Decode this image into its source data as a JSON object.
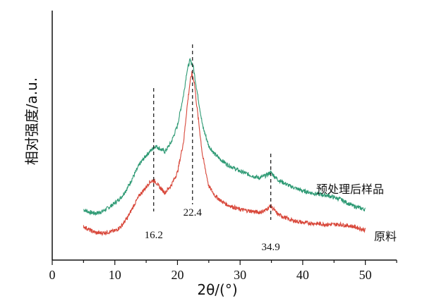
{
  "chart_data": {
    "type": "line",
    "title": "",
    "xlabel": "2θ/(°)",
    "ylabel": "相对强度/a.u.",
    "xlim": [
      0,
      55
    ],
    "x_ticks": [
      0,
      10,
      20,
      30,
      40,
      50
    ],
    "x_ticks_labels": [
      "0",
      "10",
      "20",
      "30",
      "40",
      "50"
    ],
    "y_ticks": [],
    "grid": false,
    "series": [
      {
        "name": "预处理后样品",
        "color": "#2e9a74",
        "x": [
          5,
          6,
          7,
          8,
          9,
          10,
          11,
          12,
          13,
          14,
          15,
          16,
          16.5,
          17,
          18,
          19,
          20,
          21,
          21.5,
          22,
          22.5,
          23,
          24,
          25,
          26,
          27,
          28,
          30,
          32,
          33,
          34,
          34.9,
          36,
          38,
          40,
          42,
          44,
          46,
          48,
          50
        ],
        "y": [
          0.18,
          0.165,
          0.16,
          0.17,
          0.19,
          0.215,
          0.245,
          0.295,
          0.36,
          0.425,
          0.47,
          0.505,
          0.52,
          0.51,
          0.49,
          0.54,
          0.63,
          0.8,
          0.92,
          0.98,
          0.95,
          0.84,
          0.63,
          0.52,
          0.475,
          0.445,
          0.42,
          0.385,
          0.36,
          0.35,
          0.36,
          0.38,
          0.34,
          0.305,
          0.28,
          0.265,
          0.255,
          0.235,
          0.2,
          0.18
        ]
      },
      {
        "name": "原料",
        "color": "#d8473a",
        "x": [
          5,
          6,
          7,
          8,
          9,
          10,
          11,
          12,
          13,
          14,
          15,
          15.5,
          16,
          16.5,
          17,
          18,
          19,
          20,
          21,
          21.5,
          22,
          22.3,
          22.7,
          23,
          24,
          25,
          26,
          27,
          28,
          30,
          32,
          33,
          34,
          34.9,
          36,
          38,
          40,
          42,
          44,
          46,
          48,
          50
        ],
        "y": [
          0.09,
          0.07,
          0.055,
          0.055,
          0.06,
          0.065,
          0.09,
          0.135,
          0.2,
          0.26,
          0.3,
          0.325,
          0.335,
          0.33,
          0.305,
          0.27,
          0.31,
          0.38,
          0.55,
          0.72,
          0.86,
          0.91,
          0.86,
          0.76,
          0.47,
          0.305,
          0.255,
          0.225,
          0.205,
          0.18,
          0.17,
          0.165,
          0.175,
          0.2,
          0.155,
          0.125,
          0.11,
          0.105,
          0.1,
          0.1,
          0.09,
          0.07
        ]
      }
    ],
    "annotations": [
      {
        "x": 16.2,
        "label": "16.2"
      },
      {
        "x": 22.4,
        "label": "22.4"
      },
      {
        "x": 34.9,
        "label": "34.9"
      }
    ]
  }
}
